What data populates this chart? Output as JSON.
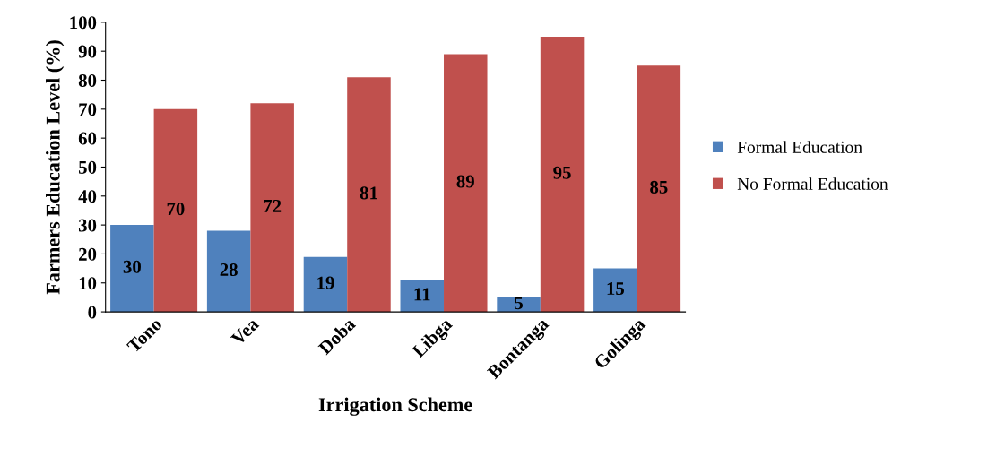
{
  "chart_data": {
    "type": "bar",
    "xlabel": "Irrigation Scheme",
    "ylabel": "Farmers Education Level (%)",
    "categories": [
      "Tono",
      "Vea",
      "Doba",
      "Libga",
      "Bontanga",
      "Golinga"
    ],
    "series": [
      {
        "name": "Formal Education",
        "color": "#4f81bd",
        "values": [
          30,
          28,
          19,
          11,
          5,
          15
        ]
      },
      {
        "name": "No Formal Education",
        "color": "#c0504d",
        "values": [
          70,
          72,
          81,
          89,
          95,
          85
        ]
      }
    ],
    "ylim": [
      0,
      100
    ],
    "yticks": [
      0,
      10,
      20,
      30,
      40,
      50,
      60,
      70,
      80,
      90,
      100
    ],
    "data_labels": true,
    "legend": "right",
    "grid": false
  }
}
